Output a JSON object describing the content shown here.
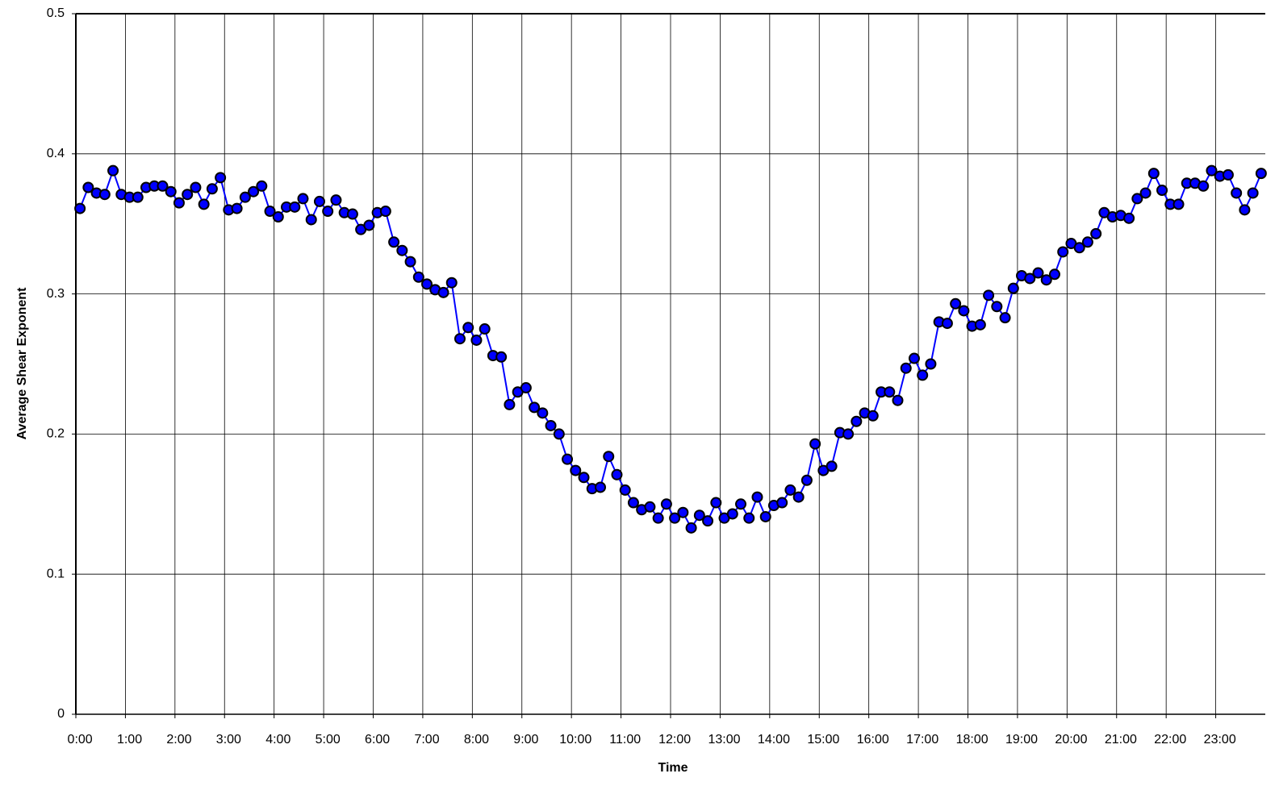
{
  "chart_data": {
    "type": "line",
    "xlabel": "Time",
    "ylabel": "Average Shear Exponent",
    "categories": [
      "0:00",
      null,
      null,
      null,
      null,
      null,
      "1:00",
      null,
      null,
      null,
      null,
      null,
      "2:00",
      null,
      null,
      null,
      null,
      null,
      "3:00",
      null,
      null,
      null,
      null,
      null,
      "4:00",
      null,
      null,
      null,
      null,
      null,
      "5:00",
      null,
      null,
      null,
      null,
      null,
      "6:00",
      null,
      null,
      null,
      null,
      null,
      "7:00",
      null,
      null,
      null,
      null,
      null,
      "8:00",
      null,
      null,
      null,
      null,
      null,
      "9:00",
      null,
      null,
      null,
      null,
      null,
      "10:00",
      null,
      null,
      null,
      null,
      null,
      "11:00",
      null,
      null,
      null,
      null,
      null,
      "12:00",
      null,
      null,
      null,
      null,
      null,
      "13:00",
      null,
      null,
      null,
      null,
      null,
      "14:00",
      null,
      null,
      null,
      null,
      null,
      "15:00",
      null,
      null,
      null,
      null,
      null,
      "16:00",
      null,
      null,
      null,
      null,
      null,
      "17:00",
      null,
      null,
      null,
      null,
      null,
      "18:00",
      null,
      null,
      null,
      null,
      null,
      "19:00",
      null,
      null,
      null,
      null,
      null,
      "20:00",
      null,
      null,
      null,
      null,
      null,
      "21:00",
      null,
      null,
      null,
      null,
      null,
      "22:00",
      null,
      null,
      null,
      null,
      null,
      "23:00",
      null,
      null,
      null,
      null,
      null
    ],
    "values": [
      0.361,
      0.376,
      0.372,
      0.371,
      0.388,
      0.371,
      0.369,
      0.369,
      0.376,
      0.377,
      0.377,
      0.373,
      0.365,
      0.371,
      0.376,
      0.364,
      0.375,
      0.383,
      0.36,
      0.361,
      0.369,
      0.373,
      0.377,
      0.359,
      0.355,
      0.362,
      0.362,
      0.368,
      0.353,
      0.366,
      0.359,
      0.367,
      0.358,
      0.357,
      0.346,
      0.349,
      0.358,
      0.359,
      0.337,
      0.331,
      0.323,
      0.312,
      0.307,
      0.303,
      0.301,
      0.308,
      0.268,
      0.276,
      0.267,
      0.275,
      0.256,
      0.255,
      0.221,
      0.23,
      0.233,
      0.219,
      0.215,
      0.206,
      0.2,
      0.182,
      0.174,
      0.169,
      0.161,
      0.162,
      0.184,
      0.171,
      0.16,
      0.151,
      0.146,
      0.148,
      0.14,
      0.15,
      0.14,
      0.144,
      0.133,
      0.142,
      0.138,
      0.151,
      0.14,
      0.143,
      0.15,
      0.14,
      0.155,
      0.141,
      0.149,
      0.151,
      0.16,
      0.155,
      0.167,
      0.193,
      0.174,
      0.177,
      0.201,
      0.2,
      0.209,
      0.215,
      0.213,
      0.23,
      0.23,
      0.224,
      0.247,
      0.254,
      0.242,
      0.25,
      0.28,
      0.279,
      0.293,
      0.288,
      0.277,
      0.278,
      0.299,
      0.291,
      0.283,
      0.304,
      0.313,
      0.311,
      0.315,
      0.31,
      0.314,
      0.33,
      0.336,
      0.333,
      0.337,
      0.343,
      0.358,
      0.355,
      0.356,
      0.354,
      0.368,
      0.372,
      0.386,
      0.374,
      0.364,
      0.364,
      0.379,
      0.379,
      0.377,
      0.388,
      0.384,
      0.385,
      0.372,
      0.36,
      0.372,
      0.386
    ],
    "color": "#0000ff",
    "ylim": [
      0,
      0.5
    ],
    "yticks": [
      0,
      0.1,
      0.2,
      0.3,
      0.4,
      0.5
    ],
    "grid": true
  }
}
